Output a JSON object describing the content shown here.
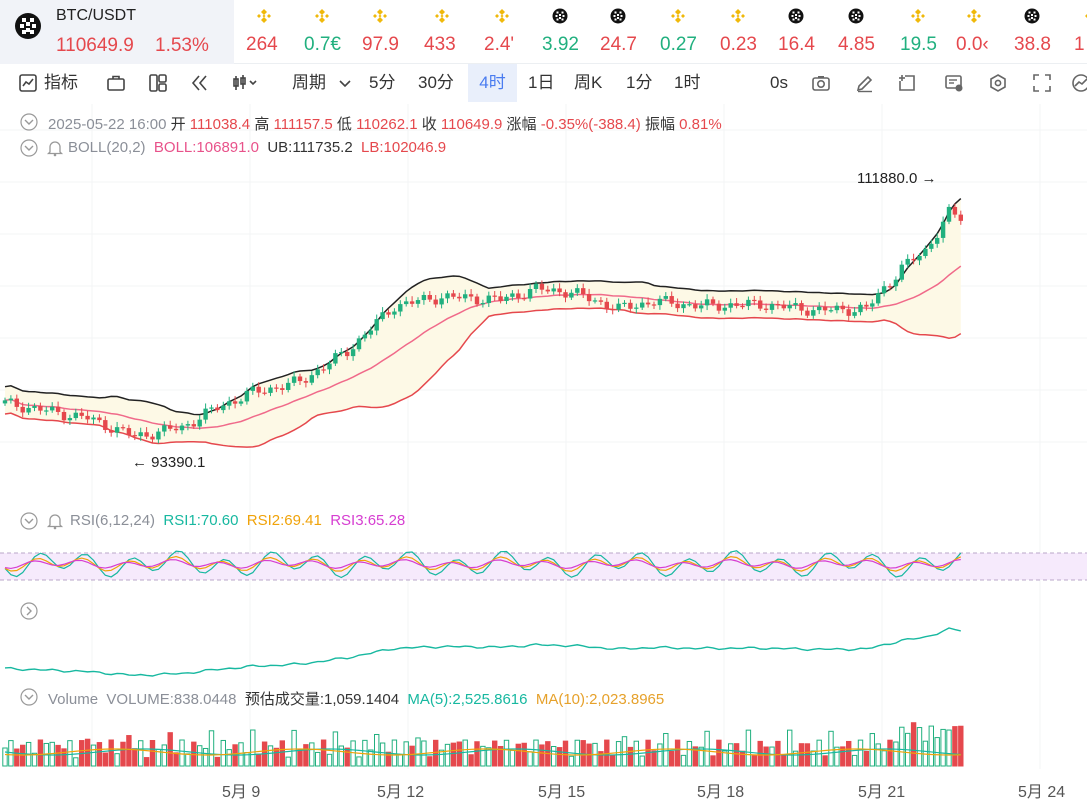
{
  "pair": {
    "name": "BTC/USDT",
    "price": "110649.9",
    "change": "1.53%"
  },
  "tickers": [
    {
      "icon": "bnb-icon",
      "value": "264",
      "dir": "down"
    },
    {
      "icon": "bnb-icon",
      "value": "0.7€",
      "dir": "up"
    },
    {
      "icon": "bnb-icon",
      "value": "97.9",
      "dir": "down"
    },
    {
      "icon": "bnb-icon",
      "value": "433",
      "dir": "down"
    },
    {
      "icon": "bnb-icon",
      "value": "2.4'",
      "dir": "down"
    },
    {
      "icon": "token-icon",
      "value": "3.92",
      "dir": "up"
    },
    {
      "icon": "token-icon",
      "value": "24.7",
      "dir": "down"
    },
    {
      "icon": "bnb-icon",
      "value": "0.27",
      "dir": "up"
    },
    {
      "icon": "bnb-icon",
      "value": "0.23",
      "dir": "down"
    },
    {
      "icon": "token-icon",
      "value": "16.4",
      "dir": "down"
    },
    {
      "icon": "token-icon",
      "value": "4.85",
      "dir": "down"
    },
    {
      "icon": "bnb-icon",
      "value": "19.5",
      "dir": "up"
    },
    {
      "icon": "bnb-icon",
      "value": "0.0‹",
      "dir": "down"
    },
    {
      "icon": "token-icon",
      "value": "38.8",
      "dir": "down"
    },
    {
      "icon": "bnb-icon",
      "value": "1",
      "dir": "down"
    }
  ],
  "toolbar": {
    "indicators": "指标",
    "period": "周期",
    "intervals": [
      "5分",
      "30分",
      "4时",
      "1日",
      "周K",
      "1分",
      "1时"
    ],
    "active_interval": "4时",
    "zero_s": "0s"
  },
  "ohlc": {
    "datetime": "2025-05-22 16:00",
    "open_label": "开",
    "open": "111038.4",
    "high_label": "高",
    "high": "111157.5",
    "low_label": "低",
    "low": "110262.1",
    "close_label": "收",
    "close": "110649.9",
    "chg_label": "涨幅",
    "chg": "-0.35%(-388.4)",
    "amp_label": "振幅",
    "amp": "0.81%"
  },
  "boll": {
    "name": "BOLL(20,2)",
    "mid": "BOLL:106891.0",
    "ub": "UB:111735.2",
    "lb": "LB:102046.9"
  },
  "rsi": {
    "name": "RSI(6,12,24)",
    "rsi1": "RSI1:70.60",
    "rsi2": "RSI2:69.41",
    "rsi3": "RSI3:65.28"
  },
  "volume": {
    "name": "Volume",
    "vol": "VOLUME:838.0448",
    "est": "预估成交量:1,059.1404",
    "ma5": "MA(5):2,525.8616",
    "ma10": "MA(10):2,023.8965"
  },
  "price_flags": {
    "high": "111880.0",
    "low": "93390.1"
  },
  "x_labels": [
    "5月 9",
    "5月 12",
    "5月 15",
    "5月 18",
    "5月 21",
    "5月 24"
  ],
  "colors": {
    "up": "#21b07f",
    "down": "#e5484d",
    "accent": "#4a7cf0",
    "boll_fill": "#fdf9e6"
  },
  "chart_data": {
    "type": "candlestick",
    "x_labels": [
      "5月 9",
      "5月 12",
      "5月 15",
      "5月 18",
      "5月 21",
      "5月 24"
    ],
    "boll_mid": 106891.0,
    "boll_ub": 111735.2,
    "boll_lb": 102046.9,
    "rsi": [
      70.6,
      69.41,
      65.28
    ],
    "marked_high": 111880.0,
    "marked_low": 93390.1
  }
}
